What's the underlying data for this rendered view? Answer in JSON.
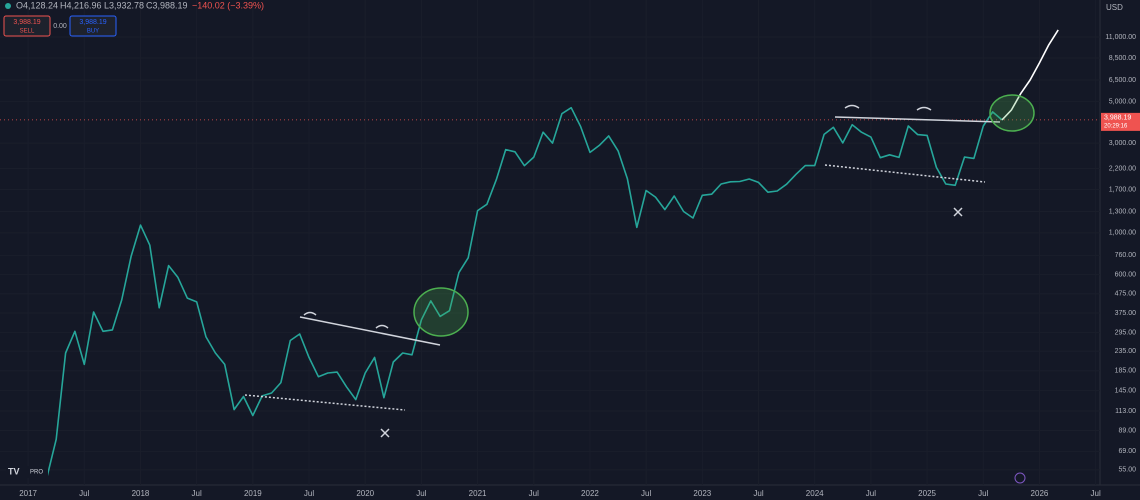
{
  "toolbar": {
    "open": "O4,128.24",
    "high": "H4,216.96",
    "low": "L3,932.78",
    "close": "C3,988.19",
    "change": "−140.02 (−3.39%)",
    "sell": "SELL",
    "spread": "0.00",
    "buy": "BUY",
    "currency": "USD",
    "countdown": "20:29:16",
    "logo": "PRO"
  },
  "chart_data": {
    "type": "line",
    "log_scale": true,
    "grid": true,
    "xlim": [
      "2016-10",
      "2026-08"
    ],
    "ylim": [
      45.7,
      17300
    ],
    "last_price": {
      "value": 3988.19,
      "label": "3,988.19"
    },
    "x": [
      "2017-03",
      "2017-04",
      "2017-05",
      "2017-06",
      "2017-07",
      "2017-08",
      "2017-09",
      "2017-10",
      "2017-11",
      "2017-12",
      "2018-01",
      "2018-02",
      "2018-03",
      "2018-04",
      "2018-05",
      "2018-06",
      "2018-07",
      "2018-08",
      "2018-09",
      "2018-10",
      "2018-11",
      "2018-12",
      "2019-01",
      "2019-02",
      "2019-03",
      "2019-04",
      "2019-05",
      "2019-06",
      "2019-07",
      "2019-08",
      "2019-09",
      "2019-10",
      "2019-11",
      "2019-12",
      "2020-01",
      "2020-02",
      "2020-03",
      "2020-04",
      "2020-05",
      "2020-06",
      "2020-07",
      "2020-08",
      "2020-09",
      "2020-10",
      "2020-11",
      "2020-12",
      "2021-01",
      "2021-02",
      "2021-03",
      "2021-04",
      "2021-05",
      "2021-06",
      "2021-07",
      "2021-08",
      "2021-09",
      "2021-10",
      "2021-11",
      "2021-12",
      "2022-01",
      "2022-02",
      "2022-03",
      "2022-04",
      "2022-05",
      "2022-06",
      "2022-07",
      "2022-08",
      "2022-09",
      "2022-10",
      "2022-11",
      "2022-12",
      "2023-01",
      "2023-02",
      "2023-03",
      "2023-04",
      "2023-05",
      "2023-06",
      "2023-07",
      "2023-08",
      "2023-09",
      "2023-10",
      "2023-11",
      "2023-12",
      "2024-01",
      "2024-02",
      "2024-03",
      "2024-04",
      "2024-05",
      "2024-06",
      "2024-07",
      "2024-08",
      "2024-09",
      "2024-10",
      "2024-11",
      "2024-12",
      "2025-01",
      "2025-02",
      "2025-03",
      "2025-04",
      "2025-05",
      "2025-06",
      "2025-07",
      "2025-08",
      "2025-09",
      "2025-10",
      "2025-11",
      "2025-12",
      "2026-01",
      "2026-02",
      "2026-03"
    ],
    "series": [
      {
        "color": "#26a69a",
        "values": [
          50,
          80,
          230,
          300,
          200,
          380,
          300,
          305,
          440,
          750,
          1100,
          860,
          400,
          670,
          580,
          450,
          430,
          280,
          230,
          200,
          115,
          135,
          107,
          136,
          141,
          160,
          268,
          290,
          218,
          172,
          180,
          182,
          152,
          130,
          180,
          218,
          133,
          206,
          230,
          225,
          345,
          435,
          360,
          386,
          615,
          737,
          1314,
          1420,
          1918,
          2773,
          2700,
          2275,
          2530,
          3430,
          3000,
          4300,
          4630,
          3680,
          2680,
          2920,
          3280,
          2730,
          1940,
          1070,
          1680,
          1550,
          1330,
          1570,
          1300,
          1200,
          1585,
          1605,
          1820,
          1870,
          1875,
          1935,
          1855,
          1645,
          1670,
          1815,
          2050,
          2280,
          2280,
          3340,
          3640,
          3010,
          3760,
          3430,
          3230,
          2510,
          2600,
          2520,
          3700,
          3330,
          3300,
          2230,
          1820,
          1790,
          2530,
          2490,
          3700,
          4400,
          3988,
          null,
          null,
          null,
          null,
          null,
          null
        ]
      },
      {
        "color": "#ffffff",
        "values": [
          null,
          null,
          null,
          null,
          null,
          null,
          null,
          null,
          null,
          null,
          null,
          null,
          null,
          null,
          null,
          null,
          null,
          null,
          null,
          null,
          null,
          null,
          null,
          null,
          null,
          null,
          null,
          null,
          null,
          null,
          null,
          null,
          null,
          null,
          null,
          null,
          null,
          null,
          null,
          null,
          null,
          null,
          null,
          null,
          null,
          null,
          null,
          null,
          null,
          null,
          null,
          null,
          null,
          null,
          null,
          null,
          null,
          null,
          null,
          null,
          null,
          null,
          null,
          null,
          null,
          null,
          null,
          null,
          null,
          null,
          null,
          null,
          null,
          null,
          null,
          null,
          null,
          null,
          null,
          null,
          null,
          null,
          null,
          null,
          null,
          null,
          null,
          null,
          null,
          null,
          null,
          null,
          null,
          null,
          null,
          null,
          null,
          null,
          null,
          null,
          null,
          null,
          3988,
          4500,
          5500,
          6500,
          8000,
          10000,
          12000
        ]
      }
    ],
    "yticks": [
      {
        "value": 11000,
        "label": "11,000.00"
      },
      {
        "value": 8500,
        "label": "8,500.00"
      },
      {
        "value": 6500,
        "label": "6,500.00"
      },
      {
        "value": 5000,
        "label": "5,000.00"
      },
      {
        "value": 3000,
        "label": "3,000.00"
      },
      {
        "value": 2200,
        "label": "2,200.00"
      },
      {
        "value": 1700,
        "label": "1,700.00"
      },
      {
        "value": 1300,
        "label": "1,300.00"
      },
      {
        "value": 1000,
        "label": "1,000.00"
      },
      {
        "value": 760,
        "label": "760.00"
      },
      {
        "value": 600,
        "label": "600.00"
      },
      {
        "value": 475,
        "label": "475.00"
      },
      {
        "value": 375,
        "label": "375.00"
      },
      {
        "value": 295,
        "label": "295.00"
      },
      {
        "value": 235,
        "label": "235.00"
      },
      {
        "value": 185,
        "label": "185.00"
      },
      {
        "value": 145,
        "label": "145.00"
      },
      {
        "value": 113,
        "label": "113.00"
      },
      {
        "value": 89,
        "label": "89.00"
      },
      {
        "value": 69,
        "label": "69.00"
      },
      {
        "value": 55,
        "label": "55.00"
      }
    ],
    "xticks": [
      {
        "value": "2017-01",
        "label": "2017"
      },
      {
        "value": "2017-07",
        "label": "Jul"
      },
      {
        "value": "2018-01",
        "label": "2018"
      },
      {
        "value": "2018-07",
        "label": "Jul"
      },
      {
        "value": "2019-01",
        "label": "2019"
      },
      {
        "value": "2019-07",
        "label": "Jul"
      },
      {
        "value": "2020-01",
        "label": "2020"
      },
      {
        "value": "2020-07",
        "label": "Jul"
      },
      {
        "value": "2021-01",
        "label": "2021"
      },
      {
        "value": "2021-07",
        "label": "Jul"
      },
      {
        "value": "2022-01",
        "label": "2022"
      },
      {
        "value": "2022-07",
        "label": "Jul"
      },
      {
        "value": "2023-01",
        "label": "2023"
      },
      {
        "value": "2023-07",
        "label": "Jul"
      },
      {
        "value": "2024-01",
        "label": "2024"
      },
      {
        "value": "2024-07",
        "label": "Jul"
      },
      {
        "value": "2025-01",
        "label": "2025"
      },
      {
        "value": "2025-07",
        "label": "Jul"
      },
      {
        "value": "2026-01",
        "label": "2026"
      },
      {
        "value": "2026-07",
        "label": "Jul"
      }
    ]
  }
}
